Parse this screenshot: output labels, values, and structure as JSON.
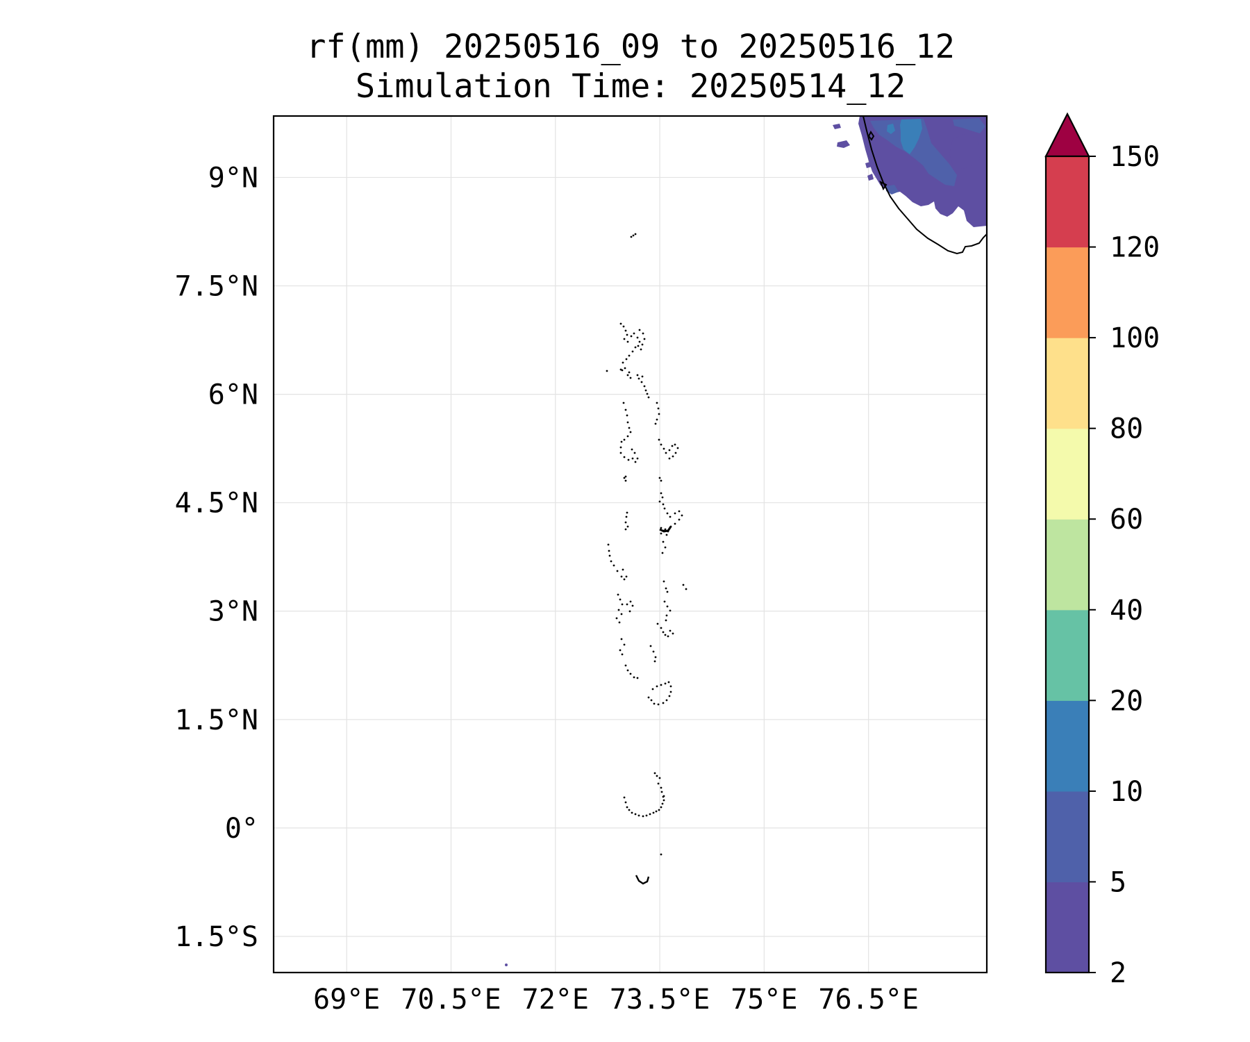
{
  "title_line1": "rf(mm) 20250516_09 to 20250516_12",
  "title_line2": "Simulation Time: 20250514_12",
  "map": {
    "lon_range": [
      67.95,
      78.2
    ],
    "lat_range": [
      -2.0,
      9.85
    ],
    "lon_ticks": [
      {
        "value": 69.0,
        "label": "69°E"
      },
      {
        "value": 70.5,
        "label": "70.5°E"
      },
      {
        "value": 72.0,
        "label": "72°E"
      },
      {
        "value": 73.5,
        "label": "73.5°E"
      },
      {
        "value": 75.0,
        "label": "75°E"
      },
      {
        "value": 76.5,
        "label": "76.5°E"
      }
    ],
    "lat_ticks": [
      {
        "value": 9.0,
        "label": "9°N"
      },
      {
        "value": 7.5,
        "label": "7.5°N"
      },
      {
        "value": 6.0,
        "label": "6°N"
      },
      {
        "value": 4.5,
        "label": "4.5°N"
      },
      {
        "value": 3.0,
        "label": "3°N"
      },
      {
        "value": 1.5,
        "label": "1.5°N"
      },
      {
        "value": 0.0,
        "label": "0°"
      },
      {
        "value": -1.5,
        "label": "1.5°S"
      }
    ],
    "gridlines": true,
    "coastline_color": "#000000"
  },
  "colorbar": {
    "extend": "max",
    "extend_color": "#9e0142",
    "levels": [
      {
        "label": "2",
        "color": "#5e4fa2"
      },
      {
        "label": "5",
        "color": "#4f61aa"
      },
      {
        "label": "10",
        "color": "#3a7fb8"
      },
      {
        "label": "20",
        "color": "#66c2a5"
      },
      {
        "label": "40",
        "color": "#bee5a0"
      },
      {
        "label": "60",
        "color": "#f4faac"
      },
      {
        "label": "80",
        "color": "#fee08b"
      },
      {
        "label": "100",
        "color": "#fb9c59"
      },
      {
        "label": "120",
        "color": "#d53e4f"
      },
      {
        "label": "150",
        "color": ""
      }
    ]
  }
}
